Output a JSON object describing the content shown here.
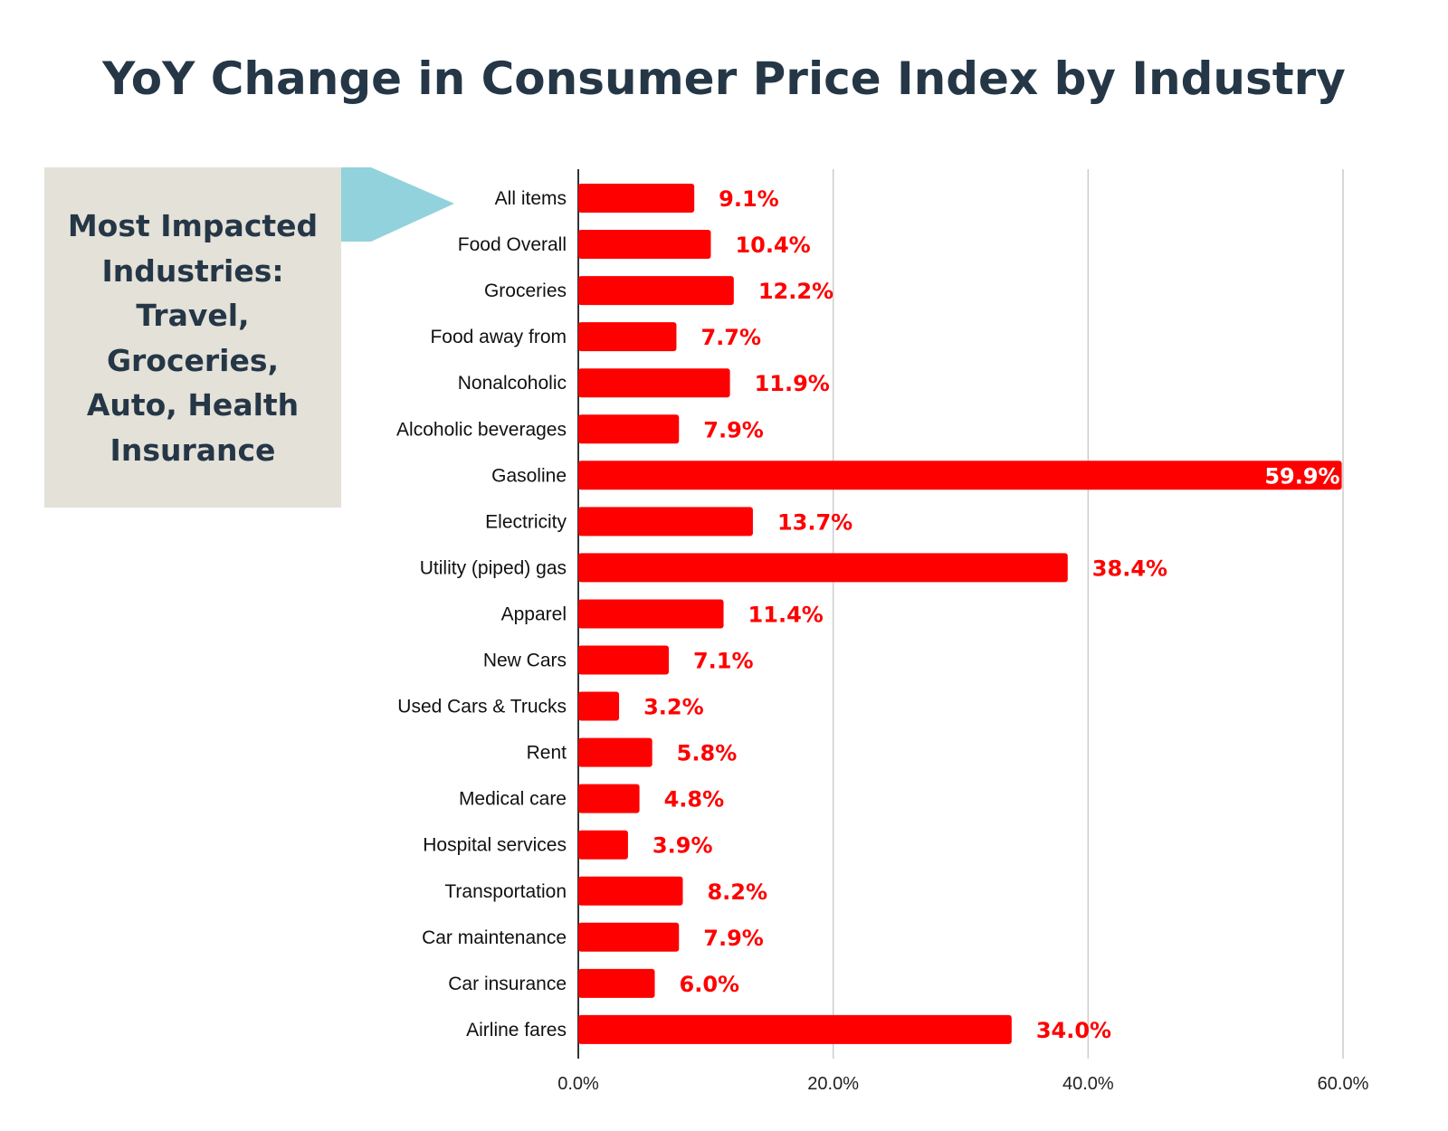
{
  "title": "YoY Change in Consumer Price Index by Industry",
  "callout": {
    "lines": [
      "Most Impacted",
      "Industries:",
      "Travel,",
      "Groceries,",
      "Auto, Health",
      "Insurance"
    ],
    "arrow_color": "#92d2dc",
    "background": "#e4e1d9"
  },
  "chart_data": {
    "type": "bar",
    "orientation": "horizontal",
    "categories": [
      "All items",
      "Food Overall",
      "Groceries",
      "Food away from",
      "Nonalcoholic",
      "Alcoholic beverages",
      "Gasoline",
      "Electricity",
      "Utility (piped) gas",
      "Apparel",
      "New Cars",
      "Used Cars & Trucks",
      "Rent",
      "Medical care",
      "Hospital services",
      "Transportation",
      "Car maintenance",
      "Car insurance",
      "Airline fares"
    ],
    "values": [
      9.1,
      10.4,
      12.2,
      7.7,
      11.9,
      7.9,
      59.9,
      13.7,
      38.4,
      11.4,
      7.1,
      3.2,
      5.8,
      4.8,
      3.9,
      8.2,
      7.9,
      6.0,
      34.0
    ],
    "data_labels": [
      "9.1%",
      "10.4%",
      "12.2%",
      "7.7%",
      "11.9%",
      "7.9%",
      "59.9%",
      "13.7%",
      "38.4%",
      "11.4%",
      "7.1%",
      "3.2%",
      "5.8%",
      "4.8%",
      "3.9%",
      "8.2%",
      "7.9%",
      "6.0%",
      "34.0%"
    ],
    "xlim": [
      0,
      60
    ],
    "xticks": [
      0,
      20,
      40,
      60
    ],
    "xtick_labels": [
      "0.0%",
      "20.0%",
      "40.0%",
      "60.0%"
    ],
    "grid": "vertical",
    "bar_color": "#ff0000",
    "xlabel": "",
    "ylabel": ""
  }
}
